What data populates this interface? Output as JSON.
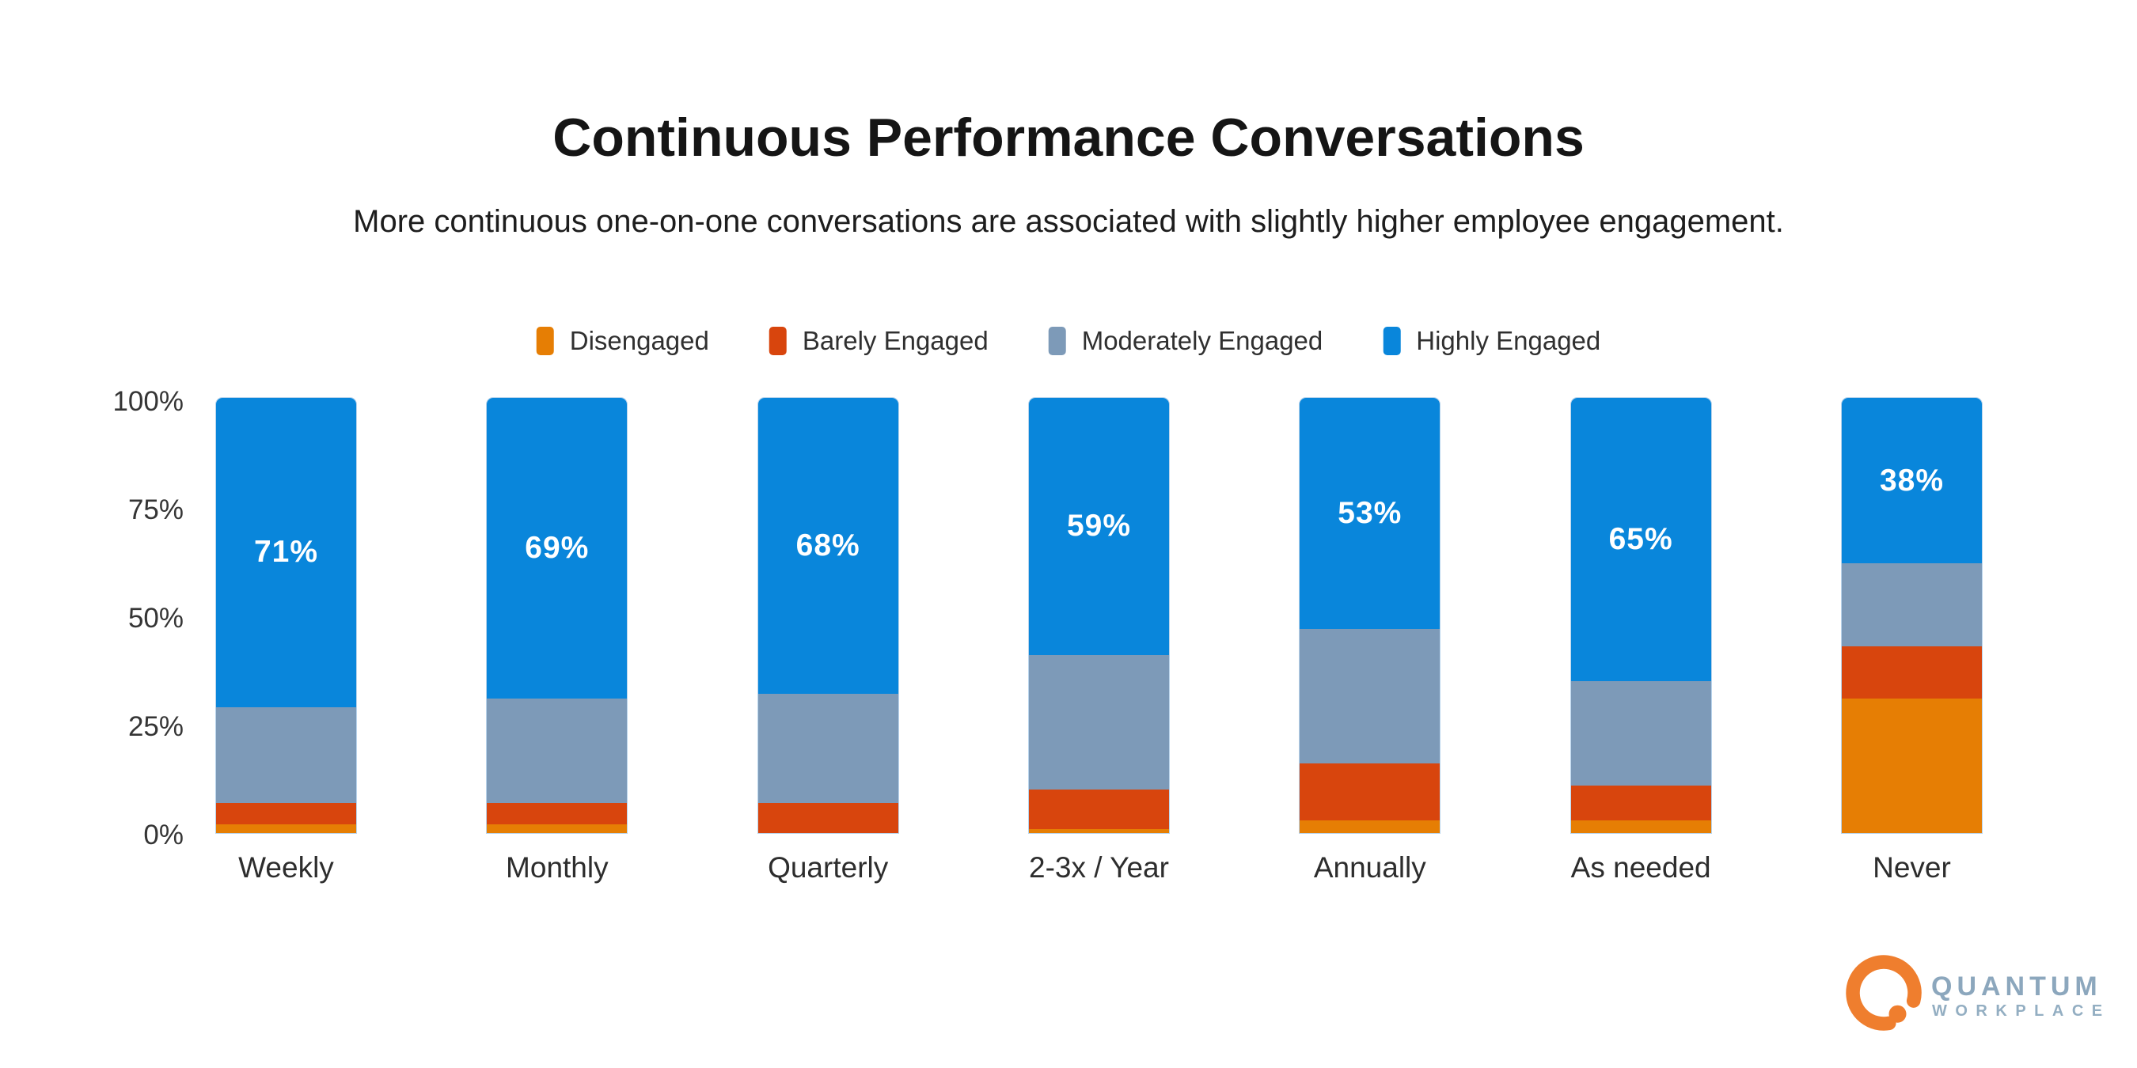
{
  "title": "Continuous Performance Conversations",
  "subtitle": "More continuous one-on-one conversations are associated with slightly higher employee engagement.",
  "background_color": "#FFFFFF",
  "chart_data": {
    "type": "bar",
    "stacked": true,
    "stack_unit": "percent",
    "categories": [
      "Weekly",
      "Monthly",
      "Quarterly",
      "2-3x / Year",
      "Annually",
      "As needed",
      "Never"
    ],
    "series": [
      {
        "name": "Disengaged",
        "color": "#E67E04",
        "values": [
          2,
          2,
          0,
          1,
          3,
          3,
          31
        ]
      },
      {
        "name": "Barely Engaged",
        "color": "#D8450D",
        "values": [
          5,
          5,
          7,
          9,
          13,
          8,
          12
        ]
      },
      {
        "name": "Moderately Engaged",
        "color": "#7D9AB8",
        "values": [
          22,
          24,
          25,
          31,
          31,
          24,
          19
        ]
      },
      {
        "name": "Highly Engaged",
        "color": "#0986DB",
        "values": [
          71,
          69,
          68,
          59,
          53,
          65,
          38
        ]
      }
    ],
    "bar_labels": [
      "71%",
      "69%",
      "68%",
      "59%",
      "53%",
      "65%",
      "38%"
    ],
    "bar_label_color": "#FFFFFF",
    "xlabel": "",
    "ylabel": "",
    "ylim": [
      0,
      100
    ],
    "yticks": [
      "100%",
      "75%",
      "50%",
      "25%",
      "0%"
    ],
    "grid": false,
    "axis_lines": false,
    "legend_position": "top"
  },
  "logo": {
    "brand_top": "QUANTUM",
    "brand_bottom": "WORKPLACE",
    "mark": "q-ring-icon",
    "orange": "#EF7E2E",
    "text_color": "#8CA7BD"
  }
}
